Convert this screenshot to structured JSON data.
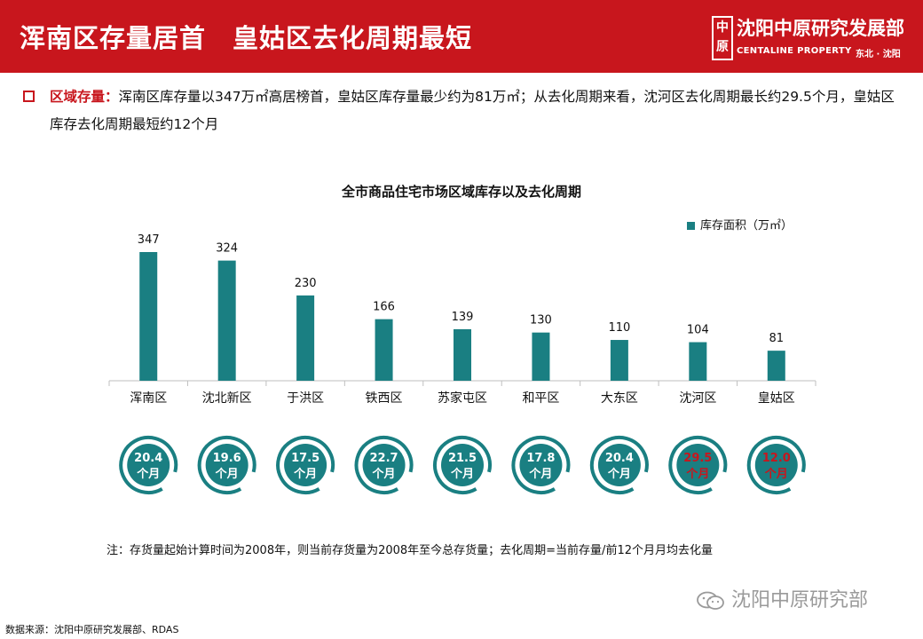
{
  "header": {
    "title": "浑南区存量居首　皇姑区去化周期最短",
    "logo_mark": "中原",
    "logo_name": "沈阳中原研究发展部",
    "logo_en": "CENTALINE PROPERTY",
    "logo_city": "东北 · 沈阳",
    "bg_color": "#c8161d"
  },
  "summary": {
    "label": "区域存量：",
    "text": "浑南区库存量以347万㎡高居榜首，皇姑区库存量最少约为81万㎡；从去化周期来看，沈河区去化周期最长约29.5个月，皇姑区库存去化周期最短约12个月"
  },
  "chart_data": {
    "type": "bar",
    "title": "全市商品住宅市场区域库存以及去化周期",
    "categories": [
      "浑南区",
      "沈北新区",
      "于洪区",
      "铁西区",
      "苏家屯区",
      "和平区",
      "大东区",
      "沈河区",
      "皇姑区"
    ],
    "series": [
      {
        "name": "库存面积（万㎡）",
        "values": [
          347,
          324,
          230,
          166,
          139,
          130,
          110,
          104,
          81
        ],
        "color": "#1a7f82"
      }
    ],
    "cycle": {
      "values": [
        "20.4",
        "19.6",
        "17.5",
        "22.7",
        "21.5",
        "17.8",
        "20.4",
        "29.5",
        "12.0"
      ],
      "unit": "个月",
      "highlight": [
        false,
        false,
        false,
        false,
        false,
        false,
        false,
        true,
        true
      ],
      "highlight_color": "#c8161d"
    },
    "ylim": [
      0,
      347
    ],
    "legend_position": "top-right"
  },
  "note": "注：存货量起始计算时间为2008年，则当前存货量为2008年至今总存货量；去化周期=当前存量/前12个月月均去化量",
  "watermark": "沈阳中原研究部",
  "source": "数据来源：沈阳中原研究发展部、RDAS"
}
